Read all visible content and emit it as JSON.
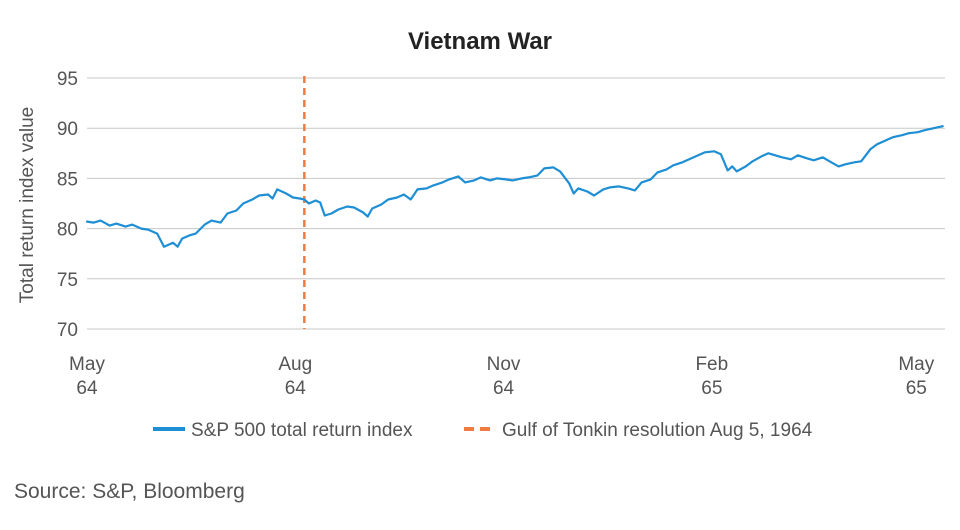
{
  "chart_data": {
    "type": "line",
    "title": "Vietnam War",
    "ylabel": "Total return index value",
    "ylim": [
      70,
      95
    ],
    "yticks": [
      70,
      75,
      80,
      85,
      90,
      95
    ],
    "xlim": [
      "1964-05-01",
      "1965-05-15"
    ],
    "xticks": [
      {
        "date": "1964-05-01",
        "label_top": "May",
        "label_bottom": "64"
      },
      {
        "date": "1964-08-01",
        "label_top": "Aug",
        "label_bottom": "64"
      },
      {
        "date": "1964-11-01",
        "label_top": "Nov",
        "label_bottom": "64"
      },
      {
        "date": "1965-02-01",
        "label_top": "Feb",
        "label_bottom": "65"
      },
      {
        "date": "1965-05-01",
        "label_top": "May",
        "label_bottom": "65"
      }
    ],
    "grid": "horizontal",
    "legend_position": "bottom",
    "series": [
      {
        "name": "S&P 500 total return index",
        "color": "#1e8fd5",
        "points": [
          [
            "1964-05-01",
            80.7
          ],
          [
            "1964-05-04",
            80.6
          ],
          [
            "1964-05-07",
            80.8
          ],
          [
            "1964-05-11",
            80.3
          ],
          [
            "1964-05-14",
            80.5
          ],
          [
            "1964-05-18",
            80.2
          ],
          [
            "1964-05-21",
            80.4
          ],
          [
            "1964-05-25",
            80.0
          ],
          [
            "1964-05-28",
            79.9
          ],
          [
            "1964-06-01",
            79.5
          ],
          [
            "1964-06-04",
            78.2
          ],
          [
            "1964-06-08",
            78.6
          ],
          [
            "1964-06-10",
            78.2
          ],
          [
            "1964-06-12",
            79.0
          ],
          [
            "1964-06-15",
            79.3
          ],
          [
            "1964-06-18",
            79.5
          ],
          [
            "1964-06-22",
            80.4
          ],
          [
            "1964-06-25",
            80.8
          ],
          [
            "1964-06-29",
            80.6
          ],
          [
            "1964-07-02",
            81.5
          ],
          [
            "1964-07-06",
            81.8
          ],
          [
            "1964-07-09",
            82.5
          ],
          [
            "1964-07-13",
            82.9
          ],
          [
            "1964-07-16",
            83.3
          ],
          [
            "1964-07-20",
            83.4
          ],
          [
            "1964-07-22",
            83.0
          ],
          [
            "1964-07-24",
            83.9
          ],
          [
            "1964-07-28",
            83.5
          ],
          [
            "1964-07-31",
            83.1
          ],
          [
            "1964-08-03",
            83.0
          ],
          [
            "1964-08-05",
            82.9
          ],
          [
            "1964-08-07",
            82.5
          ],
          [
            "1964-08-10",
            82.8
          ],
          [
            "1964-08-12",
            82.6
          ],
          [
            "1964-08-14",
            81.3
          ],
          [
            "1964-08-17",
            81.5
          ],
          [
            "1964-08-20",
            81.9
          ],
          [
            "1964-08-24",
            82.2
          ],
          [
            "1964-08-27",
            82.1
          ],
          [
            "1964-08-31",
            81.6
          ],
          [
            "1964-09-02",
            81.2
          ],
          [
            "1964-09-04",
            82.0
          ],
          [
            "1964-09-08",
            82.4
          ],
          [
            "1964-09-11",
            82.9
          ],
          [
            "1964-09-15",
            83.1
          ],
          [
            "1964-09-18",
            83.4
          ],
          [
            "1964-09-21",
            82.9
          ],
          [
            "1964-09-24",
            83.9
          ],
          [
            "1964-09-28",
            84.0
          ],
          [
            "1964-10-01",
            84.3
          ],
          [
            "1964-10-05",
            84.6
          ],
          [
            "1964-10-08",
            84.9
          ],
          [
            "1964-10-12",
            85.2
          ],
          [
            "1964-10-15",
            84.6
          ],
          [
            "1964-10-19",
            84.8
          ],
          [
            "1964-10-22",
            85.1
          ],
          [
            "1964-10-26",
            84.8
          ],
          [
            "1964-10-29",
            85.0
          ],
          [
            "1964-11-02",
            84.9
          ],
          [
            "1964-11-05",
            84.8
          ],
          [
            "1964-11-09",
            85.0
          ],
          [
            "1964-11-12",
            85.1
          ],
          [
            "1964-11-16",
            85.3
          ],
          [
            "1964-11-19",
            86.0
          ],
          [
            "1964-11-23",
            86.1
          ],
          [
            "1964-11-26",
            85.7
          ],
          [
            "1964-11-30",
            84.5
          ],
          [
            "1964-12-02",
            83.5
          ],
          [
            "1964-12-04",
            84.0
          ],
          [
            "1964-12-08",
            83.7
          ],
          [
            "1964-12-11",
            83.3
          ],
          [
            "1964-12-15",
            83.9
          ],
          [
            "1964-12-18",
            84.1
          ],
          [
            "1964-12-22",
            84.2
          ],
          [
            "1964-12-26",
            84.0
          ],
          [
            "1964-12-29",
            83.8
          ],
          [
            "1965-01-01",
            84.6
          ],
          [
            "1965-01-05",
            84.9
          ],
          [
            "1965-01-08",
            85.6
          ],
          [
            "1965-01-12",
            85.9
          ],
          [
            "1965-01-15",
            86.3
          ],
          [
            "1965-01-19",
            86.6
          ],
          [
            "1965-01-22",
            86.9
          ],
          [
            "1965-01-26",
            87.3
          ],
          [
            "1965-01-29",
            87.6
          ],
          [
            "1965-02-02",
            87.7
          ],
          [
            "1965-02-05",
            87.4
          ],
          [
            "1965-02-08",
            85.8
          ],
          [
            "1965-02-10",
            86.2
          ],
          [
            "1965-02-12",
            85.7
          ],
          [
            "1965-02-16",
            86.2
          ],
          [
            "1965-02-19",
            86.7
          ],
          [
            "1965-02-23",
            87.2
          ],
          [
            "1965-02-26",
            87.5
          ],
          [
            "1965-03-01",
            87.3
          ],
          [
            "1965-03-04",
            87.1
          ],
          [
            "1965-03-08",
            86.9
          ],
          [
            "1965-03-11",
            87.3
          ],
          [
            "1965-03-15",
            87.0
          ],
          [
            "1965-03-18",
            86.8
          ],
          [
            "1965-03-22",
            87.1
          ],
          [
            "1965-03-25",
            86.7
          ],
          [
            "1965-03-29",
            86.2
          ],
          [
            "1965-04-01",
            86.4
          ],
          [
            "1965-04-05",
            86.6
          ],
          [
            "1965-04-08",
            86.7
          ],
          [
            "1965-04-12",
            87.9
          ],
          [
            "1965-04-15",
            88.4
          ],
          [
            "1965-04-19",
            88.8
          ],
          [
            "1965-04-22",
            89.1
          ],
          [
            "1965-04-26",
            89.3
          ],
          [
            "1965-04-29",
            89.5
          ],
          [
            "1965-05-03",
            89.6
          ],
          [
            "1965-05-06",
            89.8
          ],
          [
            "1965-05-10",
            90.0
          ],
          [
            "1965-05-14",
            90.2
          ]
        ]
      }
    ],
    "event_line": {
      "date": "1964-08-05",
      "name": "Gulf of Tonkin resolution Aug 5, 1964",
      "color": "#f07b3f",
      "style": "dashed"
    },
    "colors": {
      "grid": "#c7c7c7",
      "axis_text": "#555555",
      "title": "#222222"
    }
  },
  "source": "Source: S&P, Bloomberg"
}
